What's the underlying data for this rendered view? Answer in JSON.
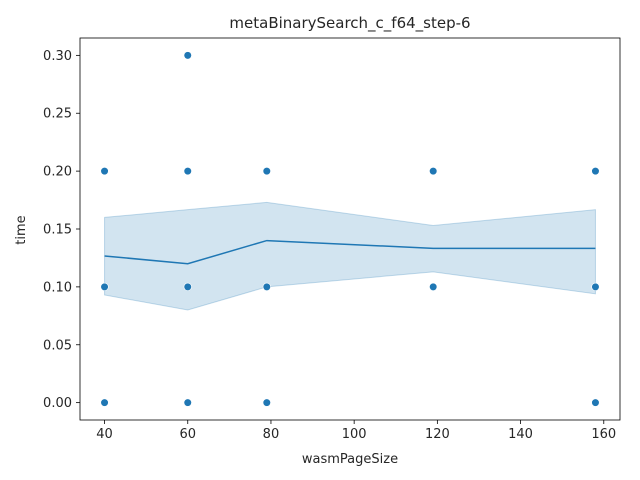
{
  "chart_data": {
    "type": "scatter",
    "title": "metaBinarySearch_c_f64_step-6",
    "xlabel": "wasmPageSize",
    "ylabel": "time",
    "xlim": [
      34.1,
      163.9
    ],
    "ylim": [
      -0.015,
      0.315
    ],
    "xticks": [
      40,
      60,
      80,
      100,
      120,
      140,
      160
    ],
    "yticks": [
      0.0,
      0.05,
      0.1,
      0.15,
      0.2,
      0.25,
      0.3
    ],
    "ytick_labels": [
      "0.00",
      "0.05",
      "0.10",
      "0.15",
      "0.20",
      "0.25",
      "0.30"
    ],
    "grid": false,
    "legend": "none",
    "colors": {
      "points": "#1f77b4",
      "line": "#1f77b4",
      "band": "#1f77b4"
    },
    "points": [
      {
        "x": 40,
        "y": 0.2
      },
      {
        "x": 40,
        "y": 0.1
      },
      {
        "x": 40,
        "y": 0.0
      },
      {
        "x": 60,
        "y": 0.3
      },
      {
        "x": 60,
        "y": 0.2
      },
      {
        "x": 60,
        "y": 0.1
      },
      {
        "x": 60,
        "y": 0.0
      },
      {
        "x": 79,
        "y": 0.2
      },
      {
        "x": 79,
        "y": 0.1
      },
      {
        "x": 79,
        "y": 0.0
      },
      {
        "x": 119,
        "y": 0.2
      },
      {
        "x": 119,
        "y": 0.1
      },
      {
        "x": 158,
        "y": 0.2
      },
      {
        "x": 158,
        "y": 0.1
      },
      {
        "x": 158,
        "y": 0.0
      }
    ],
    "mean_line": {
      "x": [
        40,
        60,
        79,
        119,
        158
      ],
      "y": [
        0.1267,
        0.12,
        0.14,
        0.1333,
        0.1333
      ],
      "ci_lower": [
        0.093,
        0.08,
        0.1,
        0.113,
        0.094
      ],
      "ci_upper": [
        0.16,
        0.1667,
        0.173,
        0.153,
        0.1667
      ]
    }
  }
}
